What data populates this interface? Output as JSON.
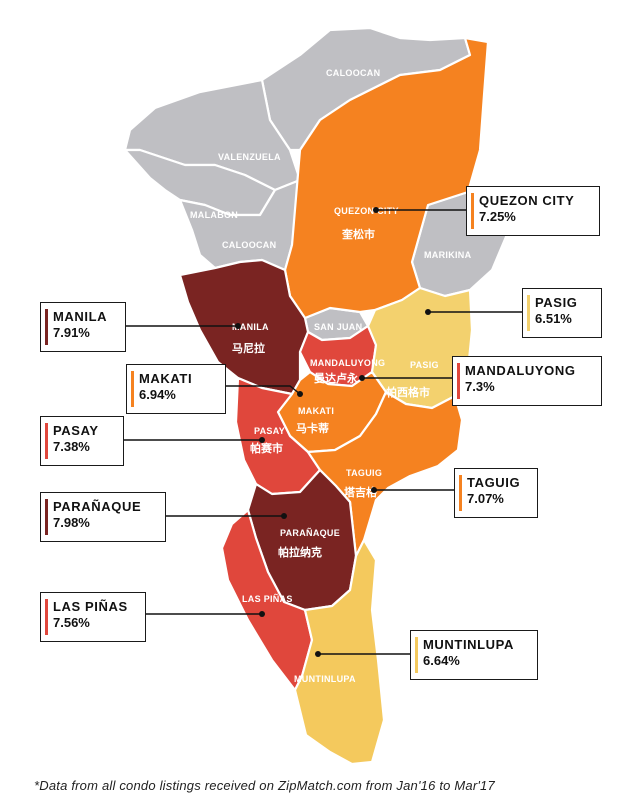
{
  "colors": {
    "orange": "#F58220",
    "dark_maroon": "#7A2422",
    "red": "#E0473C",
    "yellow": "#F4C95D",
    "gray": "#BFBFC3",
    "light_yellow": "#F3D16E"
  },
  "map_labels": {
    "caloocan_north": "CALOOCAN",
    "valenzuela": "VALENZUELA",
    "malabon": "MALABON",
    "caloocan_south": "CALOOCAN",
    "quezon": "QUEZON CITY",
    "quezon_cn": "奎松市",
    "marikina": "MARIKINA",
    "manila": "MANILA",
    "manila_cn": "马尼拉",
    "san_juan": "SAN JUAN",
    "mandaluyong": "MANDALUYONG",
    "mandaluyong_cn": "曼达卢永",
    "pasig": "PASIG",
    "pasig_cn": "帕西格市",
    "makati": "MAKATI",
    "makati_cn": "马卡蒂",
    "pasay": "PASAY",
    "pasay_cn": "帕赛市",
    "taguig": "TAGUIG",
    "taguig_cn": "塔吉格",
    "paranaque": "PARAÑAQUE",
    "paranaque_cn": "帕拉纳克",
    "las_pinas": "LAS PIÑAS",
    "muntinlupa": "MUNTINLUPA"
  },
  "callouts": {
    "quezon": {
      "name": "QUEZON CITY",
      "pct": "7.25%"
    },
    "pasig": {
      "name": "PASIG",
      "pct": "6.51%"
    },
    "mandaluyong": {
      "name": "MANDALUYONG",
      "pct": "7.3%"
    },
    "taguig": {
      "name": "TAGUIG",
      "pct": "7.07%"
    },
    "muntinlupa": {
      "name": "MUNTINLUPA",
      "pct": "6.64%"
    },
    "manila": {
      "name": "MANILA",
      "pct": "7.91%"
    },
    "makati": {
      "name": "MAKATI",
      "pct": "6.94%"
    },
    "pasay": {
      "name": "PASAY",
      "pct": "7.38%"
    },
    "paranaque": {
      "name": "PARAÑAQUE",
      "pct": "7.98%"
    },
    "las_pinas": {
      "name": "LAS PIÑAS",
      "pct": "7.56%"
    }
  },
  "footnote": "*Data from all condo listings received on ZipMatch.com from Jan'16 to Mar'17"
}
